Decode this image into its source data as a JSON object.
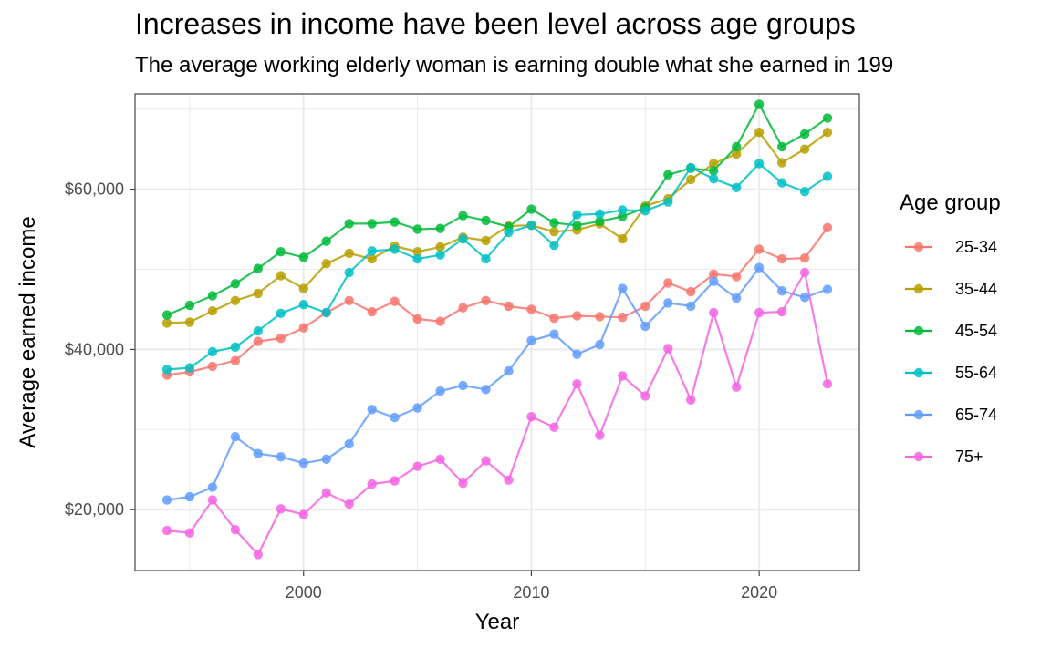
{
  "title": "Increases in income have been level across age groups",
  "subtitle": "The average working elderly woman is earning double what she earned in 199",
  "chart_data": {
    "type": "line",
    "title": "Increases in income have been level across age groups",
    "subtitle": "The average working elderly woman is earning double what she earned in 199",
    "xlabel": "Year",
    "ylabel": "Average earned income",
    "xlim": [
      1992.6,
      2024.4
    ],
    "ylim": [
      12400,
      71900
    ],
    "x_ticks": [
      2000,
      2010,
      2020
    ],
    "x_tick_labels": [
      "2000",
      "2010",
      "2020"
    ],
    "y_ticks": [
      20000,
      40000,
      60000
    ],
    "y_tick_labels": [
      "$20,000",
      "$40,000",
      "$60,000"
    ],
    "grid": true,
    "legend_title": "Age group",
    "legend_position": "right",
    "x": [
      1994,
      1995,
      1996,
      1997,
      1998,
      1999,
      2000,
      2001,
      2002,
      2003,
      2004,
      2005,
      2006,
      2007,
      2008,
      2009,
      2010,
      2011,
      2012,
      2013,
      2014,
      2015,
      2016,
      2017,
      2018,
      2019,
      2020,
      2021,
      2022,
      2023
    ],
    "series": [
      {
        "name": "25-34",
        "color": "#F8766D",
        "values": [
          36800,
          37200,
          37900,
          38600,
          41000,
          41400,
          42700,
          44600,
          46100,
          44700,
          46000,
          43800,
          43500,
          45200,
          46100,
          45400,
          45000,
          43900,
          44200,
          44100,
          44000,
          45400,
          48300,
          47200,
          49400,
          49100,
          52500,
          51300,
          51400,
          55200
        ]
      },
      {
        "name": "35-44",
        "color": "#B79F00",
        "values": [
          43300,
          43400,
          44800,
          46100,
          47000,
          49200,
          47600,
          50700,
          52000,
          51300,
          52900,
          52200,
          52800,
          54000,
          53600,
          55400,
          55500,
          54700,
          54900,
          55700,
          53800,
          57900,
          58800,
          61200,
          63200,
          64400,
          67100,
          63300,
          65000,
          67100
        ]
      },
      {
        "name": "45-54",
        "color": "#00BA38",
        "values": [
          44300,
          45500,
          46700,
          48200,
          50100,
          52200,
          51500,
          53500,
          55700,
          55700,
          55900,
          55000,
          55100,
          56700,
          56100,
          55300,
          57500,
          55800,
          55500,
          56000,
          56600,
          57700,
          61800,
          62600,
          62300,
          65300,
          70600,
          65300,
          66900,
          68900
        ]
      },
      {
        "name": "55-64",
        "color": "#00BFC4",
        "values": [
          37500,
          37700,
          39700,
          40300,
          42300,
          44500,
          45600,
          44600,
          49600,
          52300,
          52500,
          51300,
          51800,
          53800,
          51300,
          54600,
          55500,
          53000,
          56800,
          56900,
          57400,
          57300,
          58400,
          62700,
          61300,
          60200,
          63200,
          60800,
          59700,
          61600
        ]
      },
      {
        "name": "65-74",
        "color": "#619CFF",
        "values": [
          21200,
          21600,
          22800,
          29100,
          27000,
          26600,
          25800,
          26300,
          28200,
          32500,
          31500,
          32700,
          34800,
          35500,
          35000,
          37300,
          41100,
          41900,
          39400,
          40600,
          47600,
          42900,
          45800,
          45400,
          48500,
          46400,
          50200,
          47300,
          46500,
          47500
        ]
      },
      {
        "name": "75+",
        "color": "#F564E3",
        "values": [
          17400,
          17100,
          21200,
          17500,
          14400,
          20100,
          19400,
          22100,
          20700,
          23200,
          23600,
          25400,
          26300,
          23300,
          26100,
          23700,
          31600,
          30300,
          35700,
          29300,
          36700,
          34200,
          40100,
          33700,
          44600,
          35300,
          44600,
          44700,
          49600,
          35700
        ]
      }
    ]
  }
}
